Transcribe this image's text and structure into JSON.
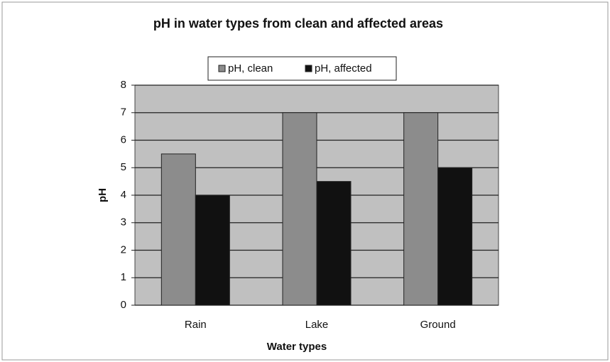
{
  "chart_data": {
    "type": "bar",
    "title": "pH in water types from clean and affected areas",
    "x_label": "Water types",
    "y_label": "pH",
    "categories": [
      "Rain",
      "Lake",
      "Ground"
    ],
    "series": [
      {
        "name": "pH, clean",
        "color": "#8c8c8c",
        "values": [
          5.5,
          7,
          7
        ]
      },
      {
        "name": "pH, affected",
        "color": "#111111",
        "values": [
          4,
          4.5,
          5
        ]
      }
    ],
    "ylim": [
      0,
      8
    ],
    "yticks": [
      0,
      1,
      2,
      3,
      4,
      5,
      6,
      7,
      8
    ],
    "grid": true,
    "legend": "top"
  }
}
